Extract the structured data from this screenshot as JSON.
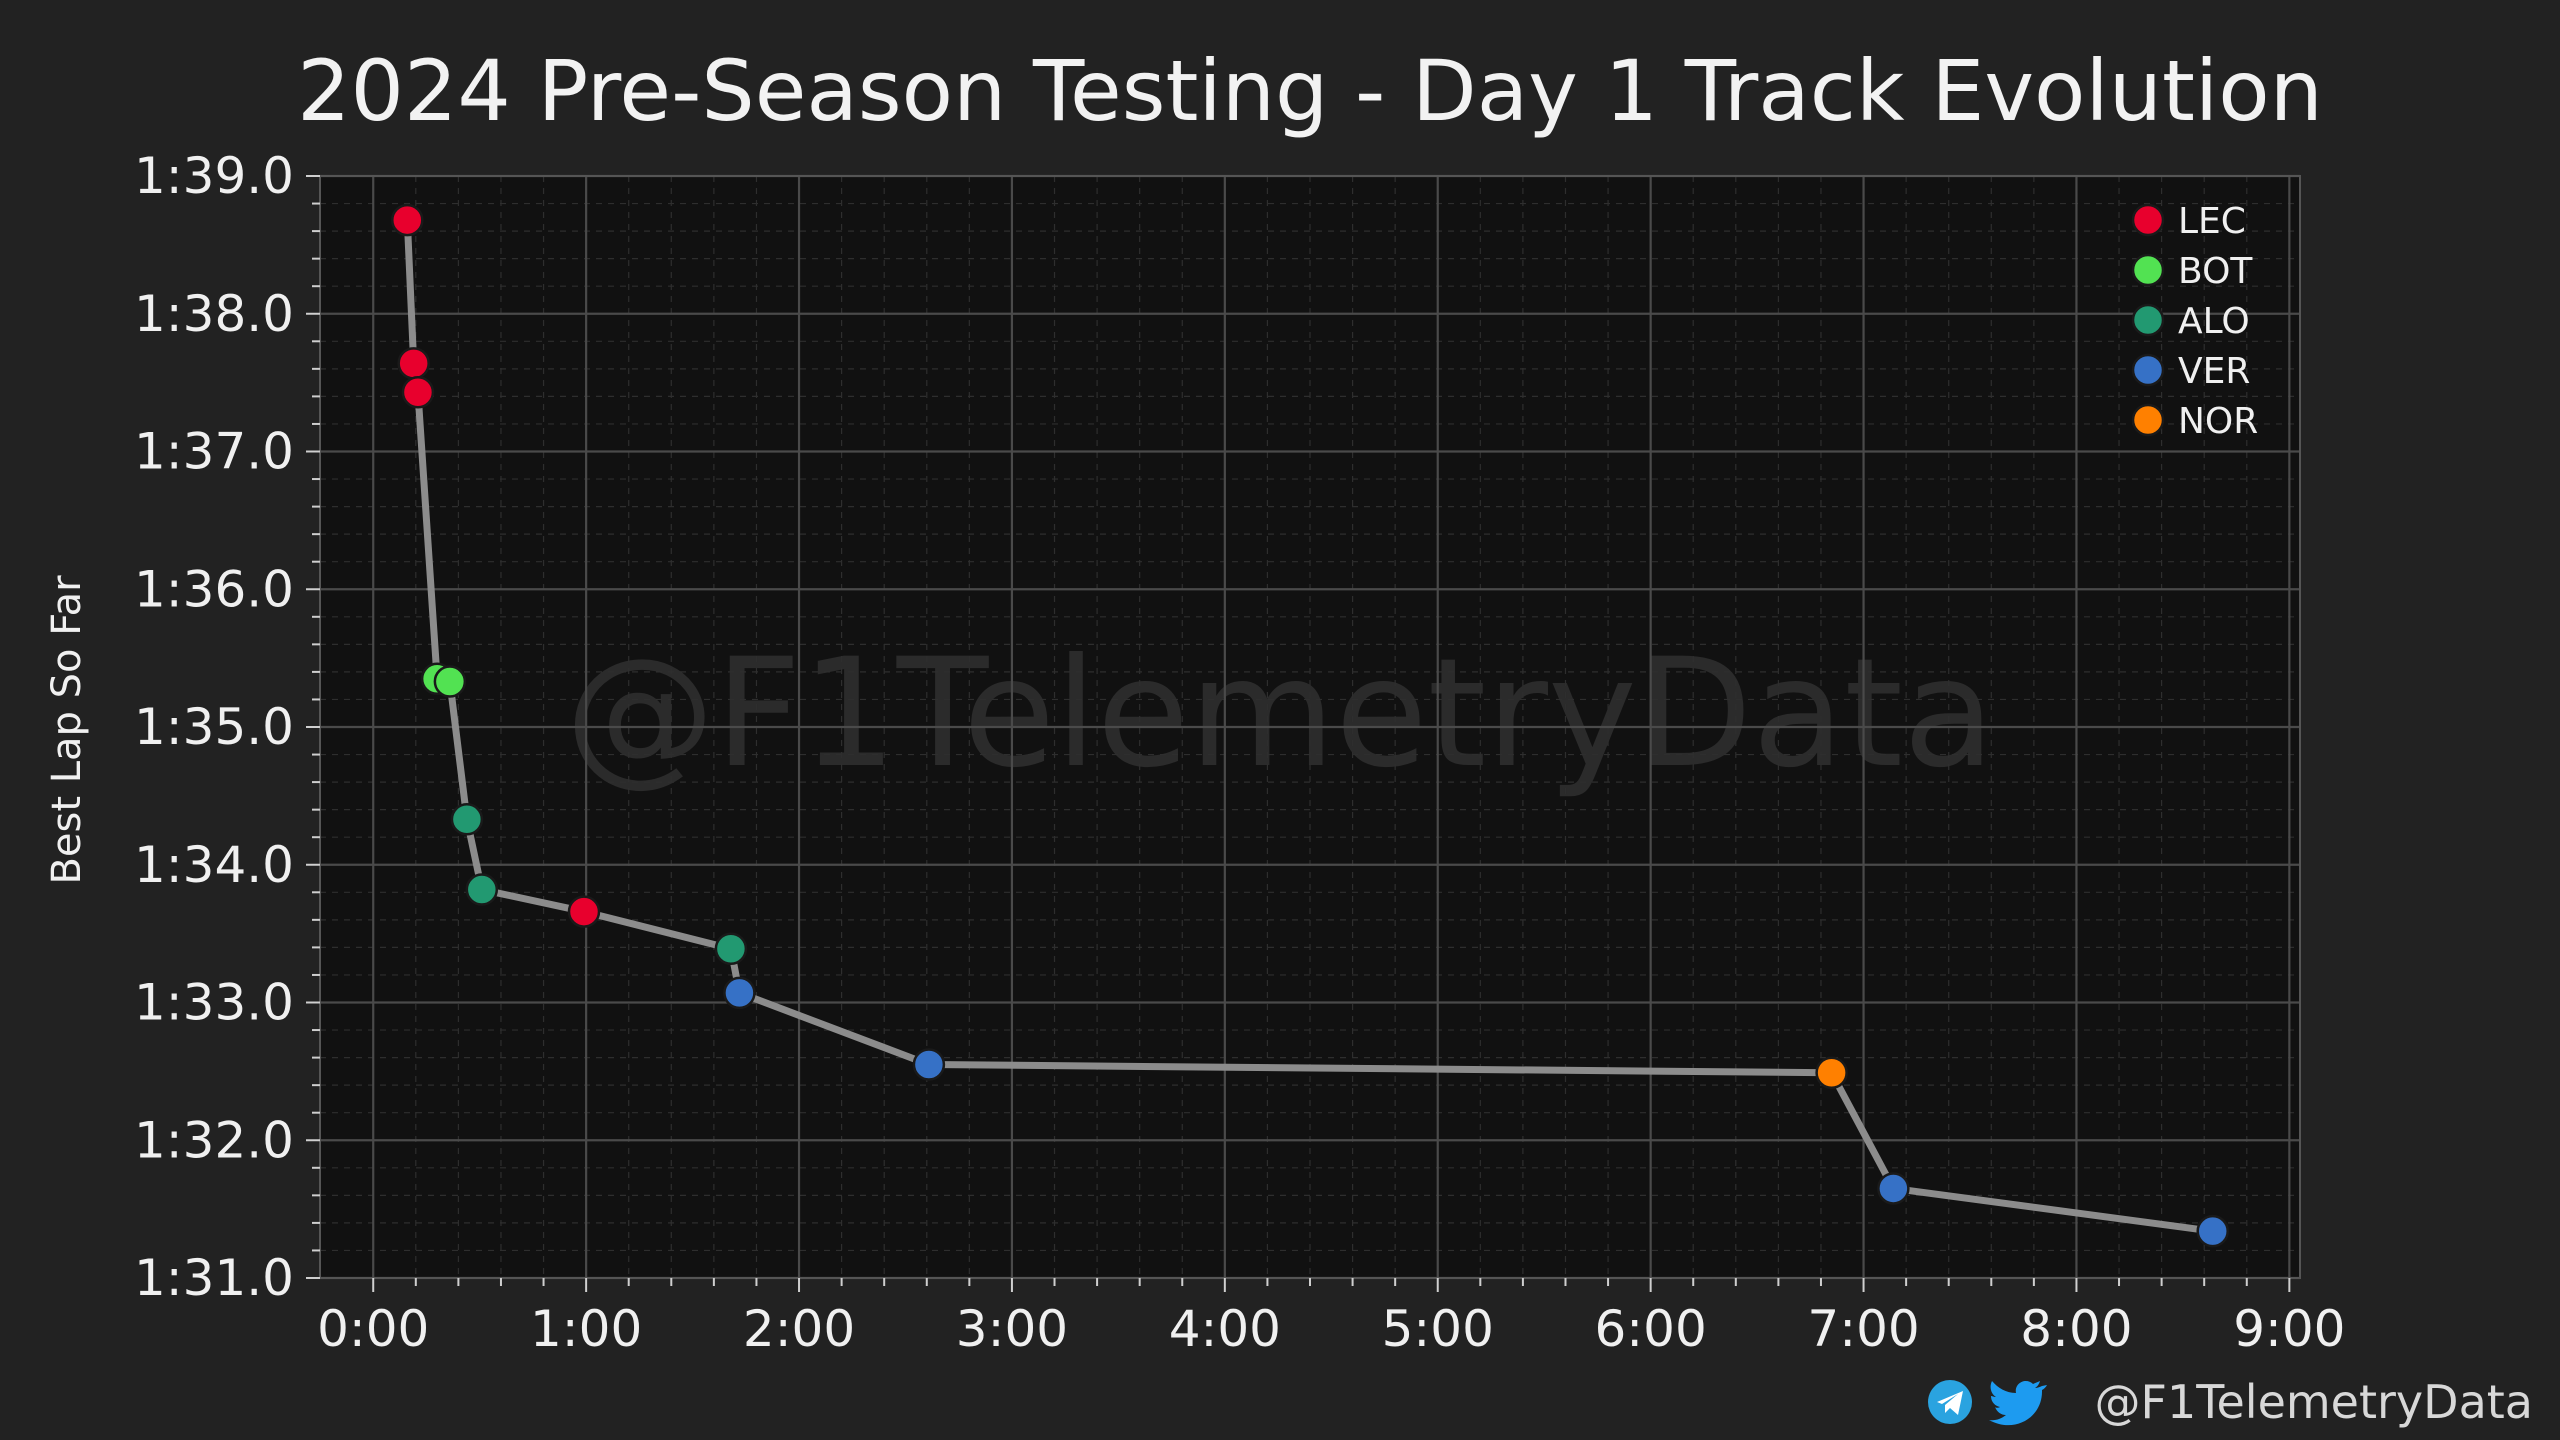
{
  "chart_data": {
    "type": "line",
    "title": "2024 Pre-Season Testing - Day 1 Track Evolution",
    "xlabel": "",
    "ylabel": "Best Lap So Far",
    "xlim": [
      -0.25,
      9.05
    ],
    "ylim": [
      91.0,
      99.0
    ],
    "x_ticks": [
      0,
      1,
      2,
      3,
      4,
      5,
      6,
      7,
      8,
      9
    ],
    "x_tick_labels": [
      "0:00",
      "1:00",
      "2:00",
      "3:00",
      "4:00",
      "5:00",
      "6:00",
      "7:00",
      "8:00",
      "9:00"
    ],
    "y_ticks": [
      91,
      92,
      93,
      94,
      95,
      96,
      97,
      98,
      99
    ],
    "y_tick_labels": [
      "1:31.0",
      "1:32.0",
      "1:33.0",
      "1:34.0",
      "1:35.0",
      "1:36.0",
      "1:37.0",
      "1:38.0",
      "1:39.0"
    ],
    "grid": true,
    "legend_position": "top-right",
    "line_color": "#8c8c8c",
    "drivers": [
      {
        "name": "LEC",
        "color": "#e8002d"
      },
      {
        "name": "BOT",
        "color": "#52e252"
      },
      {
        "name": "ALO",
        "color": "#229971"
      },
      {
        "name": "VER",
        "color": "#3671c6"
      },
      {
        "name": "NOR",
        "color": "#ff8000"
      }
    ],
    "points": [
      {
        "x": 0.16,
        "y": 98.68,
        "driver": "LEC"
      },
      {
        "x": 0.19,
        "y": 97.64,
        "driver": "LEC"
      },
      {
        "x": 0.21,
        "y": 97.43,
        "driver": "LEC"
      },
      {
        "x": 0.3,
        "y": 95.35,
        "driver": "BOT"
      },
      {
        "x": 0.36,
        "y": 95.33,
        "driver": "BOT"
      },
      {
        "x": 0.44,
        "y": 94.33,
        "driver": "ALO"
      },
      {
        "x": 0.51,
        "y": 93.82,
        "driver": "ALO"
      },
      {
        "x": 0.99,
        "y": 93.66,
        "driver": "LEC"
      },
      {
        "x": 1.68,
        "y": 93.39,
        "driver": "ALO"
      },
      {
        "x": 1.72,
        "y": 93.07,
        "driver": "VER"
      },
      {
        "x": 2.61,
        "y": 92.55,
        "driver": "VER"
      },
      {
        "x": 6.85,
        "y": 92.49,
        "driver": "NOR"
      },
      {
        "x": 7.14,
        "y": 91.65,
        "driver": "VER"
      },
      {
        "x": 8.64,
        "y": 91.34,
        "driver": "VER"
      }
    ]
  },
  "watermark": "@F1TelemetryData",
  "footer": {
    "handle": "@F1TelemetryData",
    "telegram_icon": "telegram-icon",
    "twitter_icon": "twitter-icon",
    "telegram_color": "#2aa3e0",
    "twitter_color": "#1d9bf0"
  }
}
